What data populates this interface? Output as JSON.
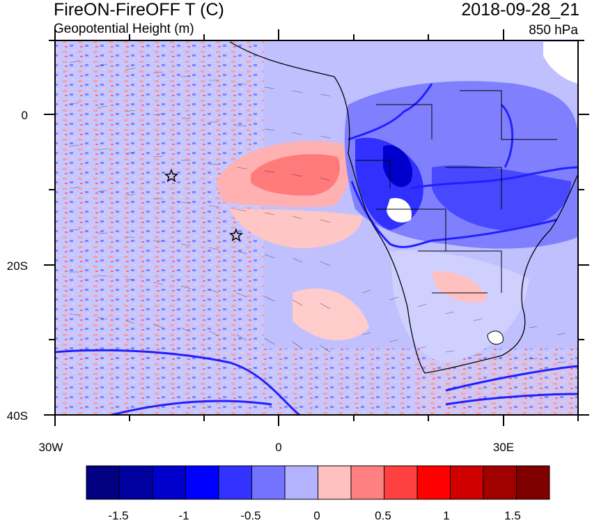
{
  "header": {
    "title": "FireON-FireOFF T (C)",
    "subtitle": "Geopotential Height (m)",
    "datetime": "2018-09-28_21",
    "level": "850 hPa"
  },
  "axes": {
    "lat_labels": [
      "0",
      "20S",
      "40S"
    ],
    "lon_labels": [
      "30W",
      "0",
      "30E"
    ]
  },
  "colorbar": {
    "labels": [
      "-1.5",
      "-1",
      "-0.5",
      "0",
      "0.5",
      "1",
      "1.5"
    ],
    "colors": [
      "#000080",
      "#00009f",
      "#0000cd",
      "#0000ff",
      "#3333ff",
      "#7373ff",
      "#b3b3ff",
      "#ffc0c0",
      "#ff8080",
      "#ff4040",
      "#ff0000",
      "#d00000",
      "#a00000",
      "#800000"
    ]
  },
  "map": {
    "markers": [
      "star-marker",
      "star-marker"
    ]
  }
}
